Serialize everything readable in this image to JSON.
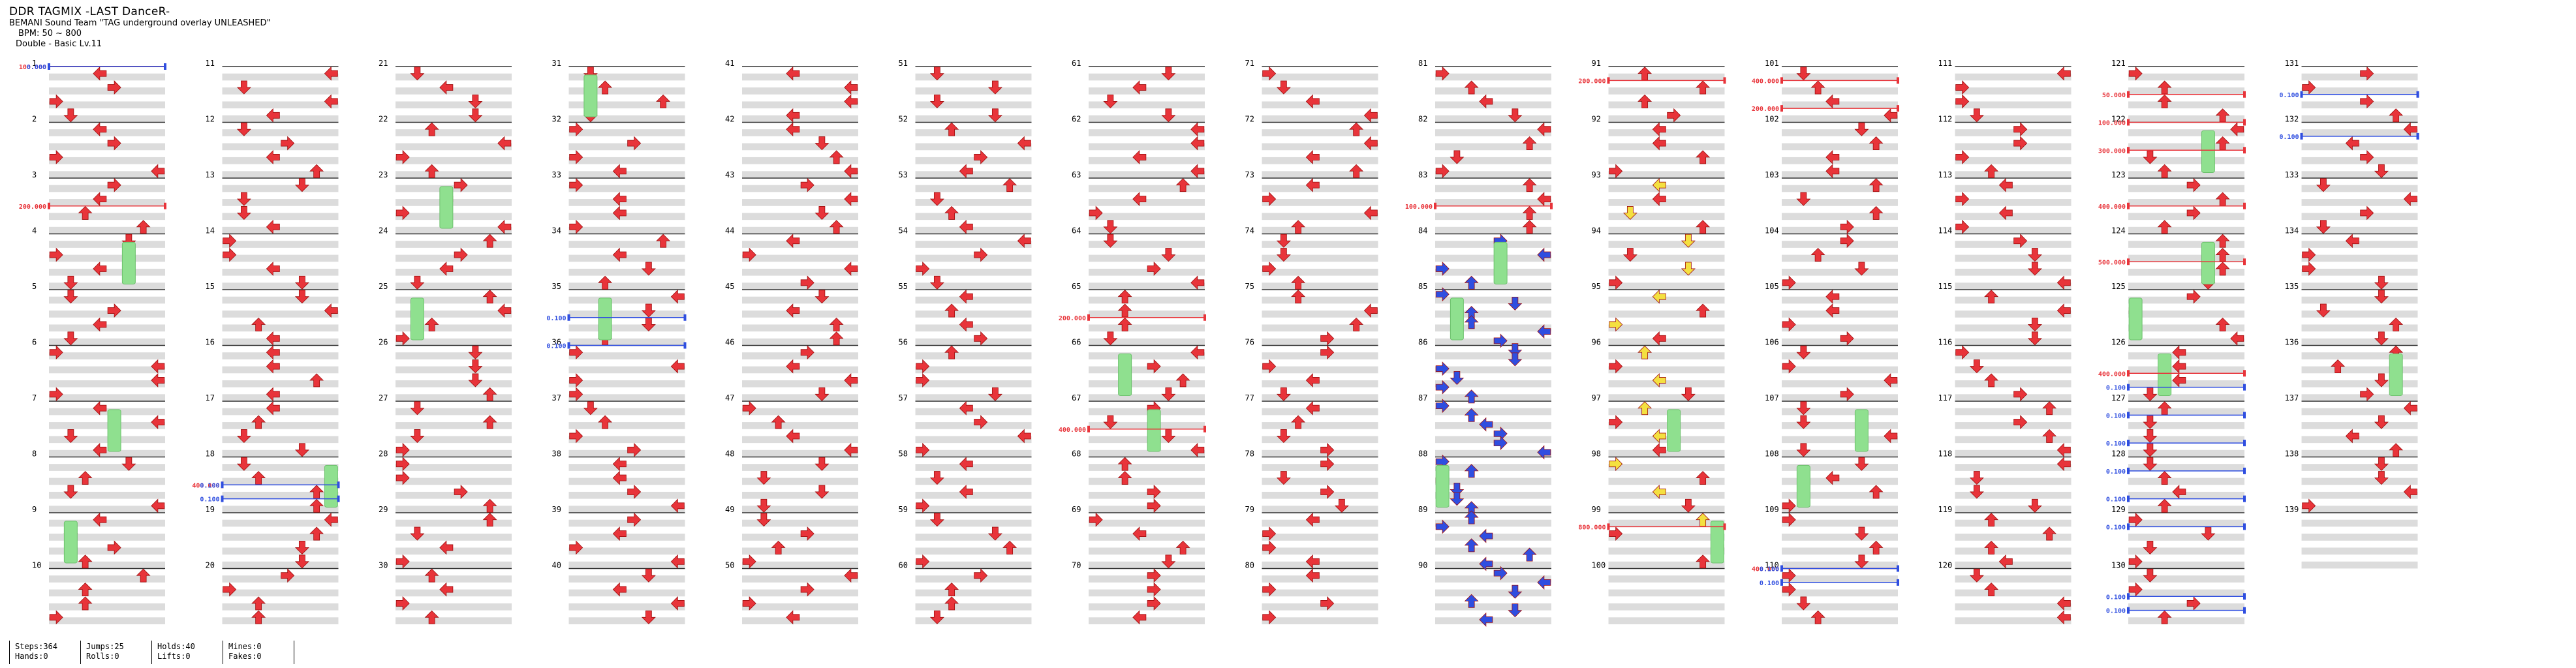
{
  "header": {
    "title": "DDR TAGMIX -LAST DanceR-",
    "artist": "BEMANI Sound Team \"TAG underground overlay UNLEASHED\"",
    "bpm": "BPM: 50 ~ 800",
    "difficulty": "Double - Basic Lv.11"
  },
  "stats": {
    "col1": [
      "Steps:364",
      "Hands:0"
    ],
    "col2": [
      "Jumps:25",
      "Rolls:0"
    ],
    "col3": [
      "Holds:40",
      "Lifts:0"
    ],
    "col4": [
      "Mines:0",
      "Fakes:0"
    ]
  },
  "colors": {
    "arrow": "#e8343a",
    "arrow_fast": "#2f4ee0",
    "arrow_shock": "#f4e040",
    "hold": "#8fe08f",
    "bpm_line": "#e8343a",
    "stop_line": "#2f4ee0",
    "lane_stripe": "#dcdcdc"
  },
  "chart": {
    "first_measure": 1,
    "last_measure": 139,
    "measures_per_column": 10,
    "lanes": 8,
    "measure_numbers": [
      1,
      2,
      3,
      4,
      5,
      6,
      7,
      8,
      9,
      10,
      11,
      12,
      13,
      14,
      15,
      16,
      17,
      18,
      19,
      20,
      21,
      22,
      23,
      24,
      25,
      26,
      27,
      28,
      29,
      30,
      31,
      32,
      33,
      34,
      35,
      36,
      37,
      38,
      39,
      40,
      41,
      42,
      43,
      44,
      45,
      46,
      47,
      48,
      49,
      50,
      51,
      52,
      53,
      54,
      55,
      56,
      57,
      58,
      59,
      60,
      61,
      62,
      63,
      64,
      65,
      66,
      67,
      68,
      69,
      70,
      71,
      72,
      73,
      74,
      75,
      76,
      77,
      78,
      79,
      80,
      81,
      82,
      83,
      84,
      85,
      86,
      87,
      88,
      89,
      90,
      91,
      92,
      93,
      94,
      95,
      96,
      97,
      98,
      99,
      100,
      101,
      102,
      103,
      104,
      105,
      106,
      107,
      108,
      109,
      110,
      111,
      112,
      113,
      114,
      115,
      116,
      117,
      118,
      119,
      120,
      121,
      122,
      123,
      124,
      125,
      126,
      127,
      128,
      129,
      130,
      131,
      132,
      133,
      134,
      135,
      136,
      137,
      138,
      139
    ],
    "bpm_changes": [
      {
        "measure": 1,
        "label": "100.000"
      },
      {
        "measure": 3.5,
        "label": "200.000"
      },
      {
        "measure": 18.5,
        "label": "400.000"
      },
      {
        "measure": 65.5,
        "label": "200.000"
      },
      {
        "measure": 67.5,
        "label": "400.000"
      },
      {
        "measure": 83.5,
        "label": "100.000"
      },
      {
        "measure": 91.25,
        "label": "200.000"
      },
      {
        "measure": 99.25,
        "label": "800.000"
      },
      {
        "measure": 101.25,
        "label": "400.000"
      },
      {
        "measure": 101.75,
        "label": "200.000"
      },
      {
        "measure": 110,
        "label": "400.000"
      },
      {
        "measure": 121.5,
        "label": "50.000"
      },
      {
        "measure": 122,
        "label": "100.000"
      },
      {
        "measure": 122.5,
        "label": "300.000"
      },
      {
        "measure": 123.5,
        "label": "400.000"
      },
      {
        "measure": 124.5,
        "label": "500.000"
      },
      {
        "measure": 126.5,
        "label": "400.000"
      }
    ],
    "stops": [
      {
        "measure": 1,
        "label": "0.000"
      },
      {
        "measure": 18.5,
        "label": "0.100"
      },
      {
        "measure": 18.75,
        "label": "0.100"
      },
      {
        "measure": 35.5,
        "label": "0.100"
      },
      {
        "measure": 36,
        "label": "0.100"
      },
      {
        "measure": 110,
        "label": "0.100"
      },
      {
        "measure": 110.25,
        "label": "0.100"
      },
      {
        "measure": 126.75,
        "label": "0.100"
      },
      {
        "measure": 127.25,
        "label": "0.100"
      },
      {
        "measure": 127.75,
        "label": "0.100"
      },
      {
        "measure": 128.25,
        "label": "0.100"
      },
      {
        "measure": 128.75,
        "label": "0.100"
      },
      {
        "measure": 129.25,
        "label": "0.100"
      },
      {
        "measure": 130.5,
        "label": "0.100"
      },
      {
        "measure": 130.75,
        "label": "0.100"
      },
      {
        "measure": 131.5,
        "label": "0.100"
      },
      {
        "measure": 132.25,
        "label": "0.100"
      }
    ]
  }
}
